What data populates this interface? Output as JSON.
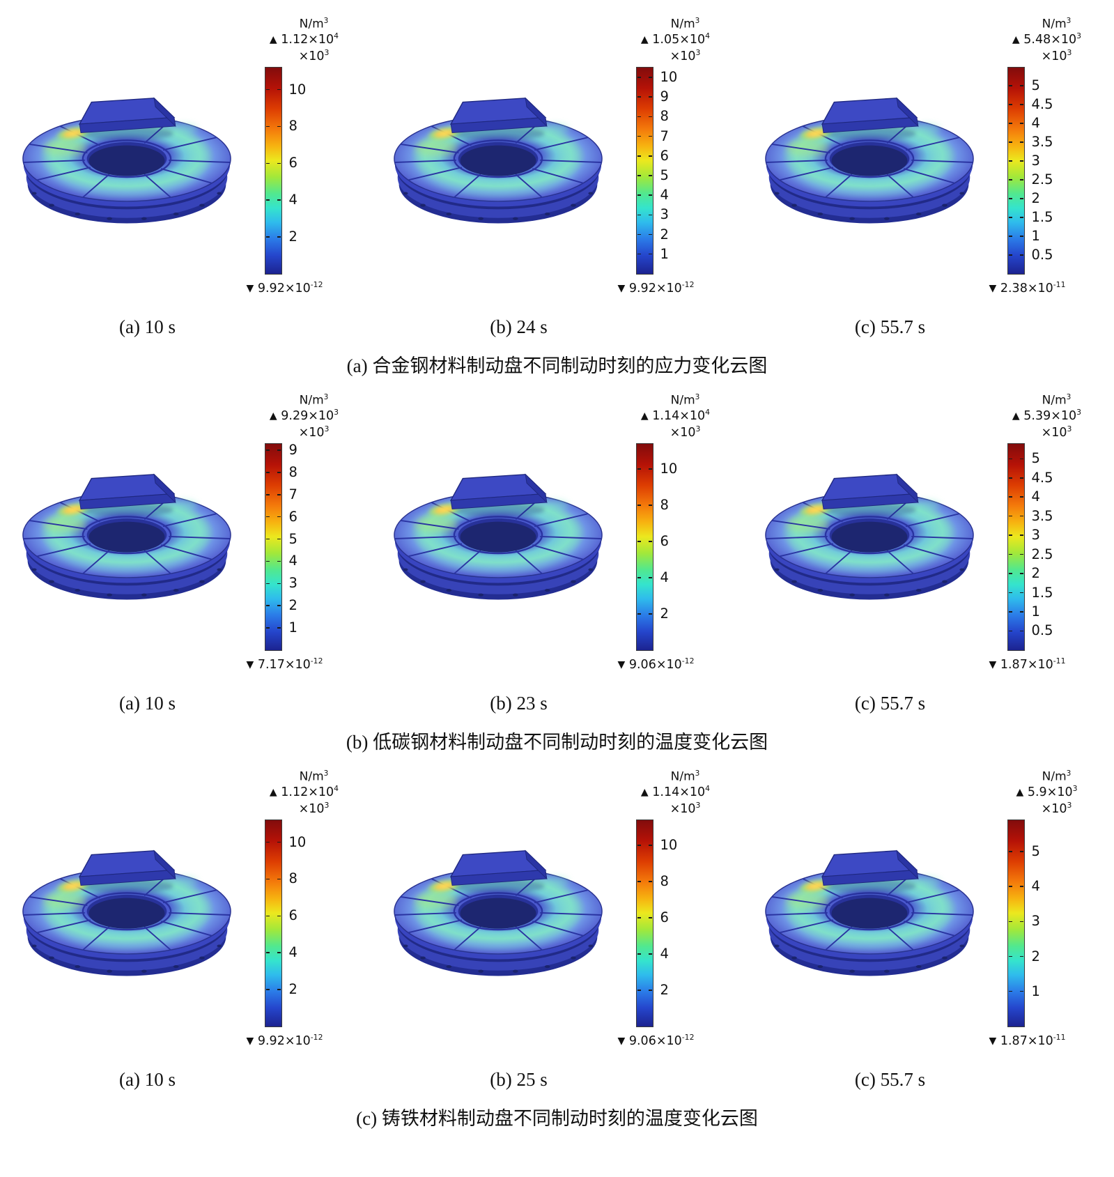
{
  "figure": {
    "unit_base": "N/m",
    "unit_exp": "3",
    "scale_base": "×10",
    "scale_exp": "3",
    "rows": [
      {
        "caption": "(a) 合金钢材料制动盘不同制动时刻的应力变化云图",
        "panels": [
          {
            "time_label": "(a) 10 s",
            "max_mantissa": "1.12×10",
            "max_exp": "4",
            "min_mantissa": "9.92×10",
            "min_exp": "-12",
            "max_value": 11.2,
            "ticks": [
              10,
              8,
              6,
              4,
              2
            ]
          },
          {
            "time_label": "(b) 24 s",
            "max_mantissa": "1.05×10",
            "max_exp": "4",
            "min_mantissa": "9.92×10",
            "min_exp": "-12",
            "max_value": 10.5,
            "ticks": [
              10,
              9,
              8,
              7,
              6,
              5,
              4,
              3,
              2,
              1
            ]
          },
          {
            "time_label": "(c) 55.7 s",
            "max_mantissa": "5.48×10",
            "max_exp": "3",
            "min_mantissa": "2.38×10",
            "min_exp": "-11",
            "max_value": 5.48,
            "ticks": [
              5,
              4.5,
              4,
              3.5,
              3,
              2.5,
              2,
              1.5,
              1,
              0.5
            ]
          }
        ]
      },
      {
        "caption": "(b) 低碳钢材料制动盘不同制动时刻的温度变化云图",
        "panels": [
          {
            "time_label": "(a) 10 s",
            "max_mantissa": "9.29×10",
            "max_exp": "3",
            "min_mantissa": "7.17×10",
            "min_exp": "-12",
            "max_value": 9.29,
            "ticks": [
              9,
              8,
              7,
              6,
              5,
              4,
              3,
              2,
              1
            ]
          },
          {
            "time_label": "(b) 23 s",
            "max_mantissa": "1.14×10",
            "max_exp": "4",
            "min_mantissa": "9.06×10",
            "min_exp": "-12",
            "max_value": 11.4,
            "ticks": [
              10,
              8,
              6,
              4,
              2
            ]
          },
          {
            "time_label": "(c) 55.7 s",
            "max_mantissa": "5.39×10",
            "max_exp": "3",
            "min_mantissa": "1.87×10",
            "min_exp": "-11",
            "max_value": 5.39,
            "ticks": [
              5,
              4.5,
              4,
              3.5,
              3,
              2.5,
              2,
              1.5,
              1,
              0.5
            ]
          }
        ]
      },
      {
        "caption": "(c) 铸铁材料制动盘不同制动时刻的温度变化云图",
        "panels": [
          {
            "time_label": "(a) 10 s",
            "max_mantissa": "1.12×10",
            "max_exp": "4",
            "min_mantissa": "9.92×10",
            "min_exp": "-12",
            "max_value": 11.2,
            "ticks": [
              10,
              8,
              6,
              4,
              2
            ]
          },
          {
            "time_label": "(b) 25 s",
            "max_mantissa": "1.14×10",
            "max_exp": "4",
            "min_mantissa": "9.06×10",
            "min_exp": "-12",
            "max_value": 11.4,
            "ticks": [
              10,
              8,
              6,
              4,
              2
            ]
          },
          {
            "time_label": "(c) 55.7 s",
            "max_mantissa": "5.9×10",
            "max_exp": "3",
            "min_mantissa": "1.87×10",
            "min_exp": "-11",
            "max_value": 5.9,
            "ticks": [
              5,
              4,
              3,
              2,
              1
            ]
          }
        ]
      }
    ]
  },
  "colors": {
    "colormap": [
      "#820c0c 0%",
      "#b51207 10%",
      "#dd3d02 20%",
      "#f47b0b 30%",
      "#f7b310 38%",
      "#ece81e 45%",
      "#a2e83a 53%",
      "#52e88e 61%",
      "#35e4cc 68%",
      "#2fbcec 75%",
      "#2b7ce8 83%",
      "#2546cc 91%",
      "#1c2390 100%"
    ],
    "disc_base_blue": "#4c5ad0",
    "disc_hot_band": "#7bdfd2",
    "hotspot_yellow": "#ffe95e"
  }
}
